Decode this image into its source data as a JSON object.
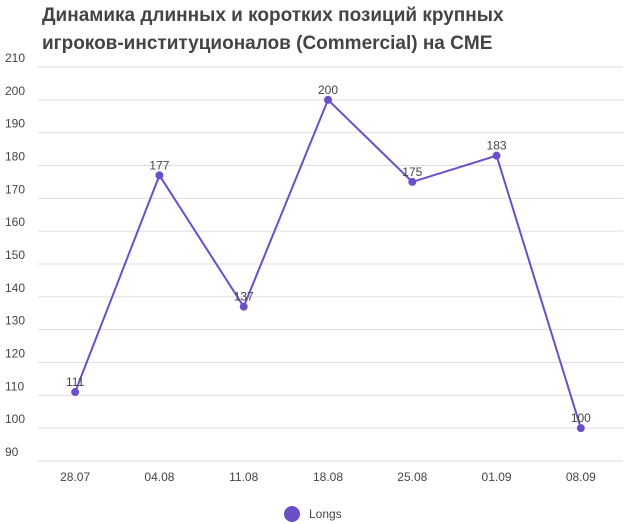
{
  "chart_data": {
    "type": "line",
    "title": "Динамика длинных и коротких позиций крупных игроков-институционалов (Commercial) на CME",
    "categories": [
      "28.07",
      "04.08",
      "11.08",
      "18.08",
      "25.08",
      "01.09",
      "08.09"
    ],
    "series": [
      {
        "name": "Longs",
        "color": "#6a4fc8",
        "values": [
          111,
          177,
          137,
          200,
          175,
          183,
          100
        ]
      }
    ],
    "ylim": [
      90,
      210
    ],
    "yticks": [
      90,
      100,
      110,
      120,
      130,
      140,
      150,
      160,
      170,
      180,
      190,
      200,
      210
    ],
    "grid": true,
    "legend": "bottom"
  }
}
